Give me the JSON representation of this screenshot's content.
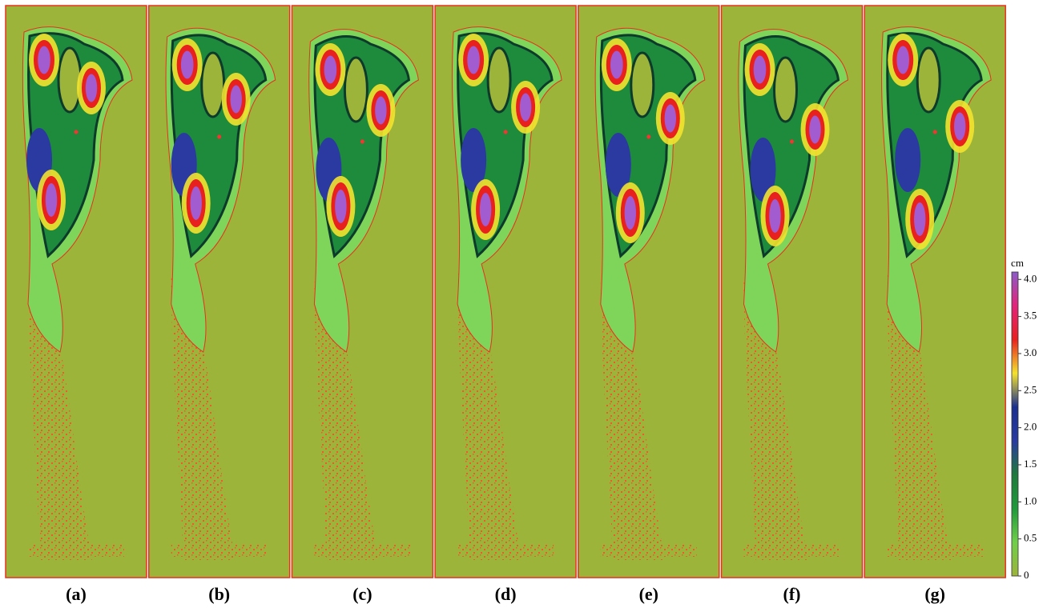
{
  "chart_data": {
    "type": "heatmap",
    "panels": [
      "(a)",
      "(b)",
      "(c)",
      "(d)",
      "(e)",
      "(f)",
      "(g)"
    ],
    "colorbar_label": "cm",
    "ylim": [
      0,
      4.1
    ],
    "yticks": [
      0,
      0.5,
      {
        "value": 1,
        "label": "1.0"
      },
      1.5,
      {
        "value": 2,
        "label": "2.0"
      },
      2.5,
      {
        "value": 3,
        "label": "3.0"
      },
      3.5,
      {
        "value": 4,
        "label": "4.0"
      }
    ],
    "colorscale": [
      "#9cb43a",
      "#6fcf4a",
      "#1f9a3a",
      "#1e7a3c",
      "#2a3aa0",
      "#1b2f8f",
      "#f3e22e",
      "#e8201e",
      "#e2237a",
      "#8a5cc8"
    ]
  }
}
